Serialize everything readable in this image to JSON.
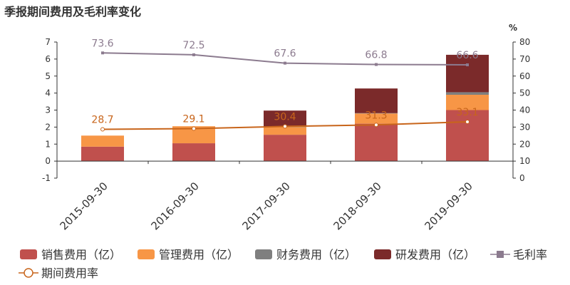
{
  "title": "季报期间费用及毛利率变化",
  "chart_data": {
    "type": "bar",
    "categories": [
      "2015-09-30",
      "2016-09-30",
      "2017-09-30",
      "2018-09-30",
      "2019-09-30"
    ],
    "series": [
      {
        "name": "销售费用（亿）",
        "kind": "bar",
        "color": "#c0504d",
        "values": [
          0.85,
          1.05,
          1.55,
          2.2,
          3.0
        ]
      },
      {
        "name": "管理费用（亿）",
        "kind": "bar",
        "color": "#f79646",
        "values": [
          0.65,
          1.0,
          0.45,
          0.6,
          0.9
        ]
      },
      {
        "name": "财务费用（亿）",
        "kind": "bar",
        "color": "#7f7f7f",
        "values": [
          0.0,
          0.0,
          0.02,
          0.02,
          0.15
        ]
      },
      {
        "name": "研发费用（亿）",
        "kind": "bar",
        "color": "#7b2a2a",
        "values": [
          0.0,
          0.0,
          0.95,
          1.45,
          2.2
        ]
      },
      {
        "name": "毛利率",
        "kind": "line",
        "axis": "right",
        "color": "#8c7b8f",
        "label_color": "#8c7b8f",
        "marker": "square",
        "values": [
          73.6,
          72.5,
          67.6,
          66.8,
          66.6
        ]
      },
      {
        "name": "期间费用率",
        "kind": "line",
        "axis": "right",
        "color": "#c8651b",
        "label_color": "#c8651b",
        "marker": "circle",
        "values": [
          28.7,
          29.1,
          30.4,
          31.3,
          33.1
        ]
      }
    ],
    "left_axis": {
      "ylim": [
        -1,
        7
      ],
      "ticks": [
        "-1",
        "0",
        "1",
        "2",
        "3",
        "4",
        "5",
        "6",
        "7"
      ]
    },
    "right_axis": {
      "unit": "%",
      "ylim": [
        0,
        80
      ],
      "ticks": [
        "0",
        "10",
        "20",
        "30",
        "40",
        "50",
        "60",
        "70",
        "80"
      ]
    },
    "legend": "bottom"
  }
}
